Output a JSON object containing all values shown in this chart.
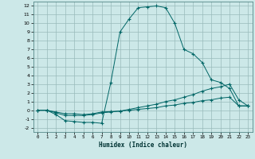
{
  "xlabel": "Humidex (Indice chaleur)",
  "bg_color": "#cce8e8",
  "grid_color": "#99bbbb",
  "line_color": "#006666",
  "xlim": [
    -0.5,
    23.5
  ],
  "ylim": [
    -2.5,
    12.5
  ],
  "xticks": [
    0,
    1,
    2,
    3,
    4,
    5,
    6,
    7,
    8,
    9,
    10,
    11,
    12,
    13,
    14,
    15,
    16,
    17,
    18,
    19,
    20,
    21,
    22,
    23
  ],
  "yticks": [
    -2,
    -1,
    0,
    1,
    2,
    3,
    4,
    5,
    6,
    7,
    8,
    9,
    10,
    11,
    12
  ],
  "curve1_x": [
    0,
    1,
    2,
    3,
    4,
    5,
    6,
    7,
    8,
    9,
    10,
    11,
    12,
    13,
    14,
    15,
    16,
    17,
    18,
    19,
    20,
    21,
    22,
    23
  ],
  "curve1_y": [
    0,
    0,
    -0.5,
    -1.2,
    -1.3,
    -1.4,
    -1.4,
    -1.5,
    3.2,
    9.0,
    10.5,
    11.8,
    11.9,
    12.0,
    11.8,
    10.0,
    7.0,
    6.5,
    5.5,
    3.5,
    3.2,
    2.5,
    0.5,
    0.5
  ],
  "curve2_x": [
    0,
    1,
    2,
    3,
    4,
    5,
    6,
    7,
    8,
    9,
    10,
    11,
    12,
    13,
    14,
    15,
    16,
    17,
    18,
    19,
    20,
    21,
    22,
    23
  ],
  "curve2_y": [
    0,
    0,
    -0.3,
    -0.6,
    -0.6,
    -0.6,
    -0.5,
    -0.3,
    -0.2,
    -0.1,
    0.1,
    0.3,
    0.5,
    0.7,
    1.0,
    1.2,
    1.5,
    1.8,
    2.2,
    2.5,
    2.7,
    3.0,
    1.2,
    0.5
  ],
  "curve3_x": [
    0,
    1,
    2,
    3,
    4,
    5,
    6,
    7,
    8,
    9,
    10,
    11,
    12,
    13,
    14,
    15,
    16,
    17,
    18,
    19,
    20,
    21,
    22,
    23
  ],
  "curve3_y": [
    0,
    0,
    -0.2,
    -0.4,
    -0.4,
    -0.5,
    -0.4,
    -0.2,
    -0.15,
    -0.1,
    0.0,
    0.1,
    0.2,
    0.3,
    0.5,
    0.6,
    0.8,
    0.9,
    1.1,
    1.2,
    1.4,
    1.5,
    0.5,
    0.5
  ]
}
